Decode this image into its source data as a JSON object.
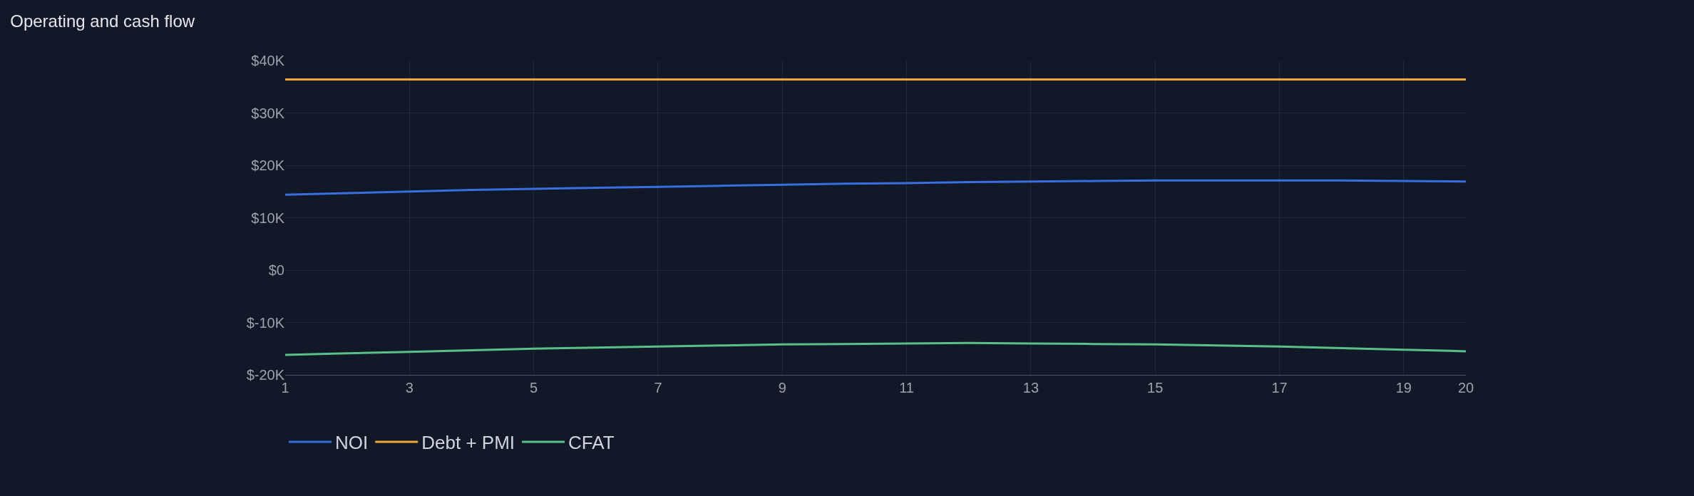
{
  "chart_data": {
    "type": "line",
    "title": "Operating and cash flow",
    "x": [
      1,
      2,
      3,
      4,
      5,
      6,
      7,
      8,
      9,
      10,
      11,
      12,
      13,
      14,
      15,
      16,
      17,
      18,
      19,
      20
    ],
    "series": [
      {
        "name": "NOI",
        "color": "#3b6fe0",
        "values": [
          14400,
          14700,
          15000,
          15300,
          15500,
          15700,
          15900,
          16100,
          16300,
          16500,
          16600,
          16800,
          16900,
          17000,
          17100,
          17100,
          17100,
          17100,
          17000,
          16900
        ]
      },
      {
        "name": "Debt + PMI",
        "color": "#f0a83c",
        "values": [
          36400,
          36400,
          36400,
          36400,
          36400,
          36400,
          36400,
          36400,
          36400,
          36400,
          36400,
          36400,
          36400,
          36400,
          36400,
          36400,
          36400,
          36400,
          36400,
          36400
        ]
      },
      {
        "name": "CFAT",
        "color": "#5bbf8a",
        "values": [
          -16200,
          -15900,
          -15600,
          -15300,
          -15000,
          -14800,
          -14600,
          -14400,
          -14200,
          -14100,
          -14000,
          -13900,
          -14000,
          -14100,
          -14200,
          -14400,
          -14600,
          -14900,
          -15200,
          -15500
        ]
      }
    ],
    "xlim": [
      1,
      20
    ],
    "xticks": [
      1,
      3,
      5,
      7,
      9,
      11,
      13,
      15,
      17,
      19,
      20
    ],
    "ylim": [
      -20000,
      40000
    ],
    "yticks": [
      {
        "value": -20000,
        "label": "$-20K"
      },
      {
        "value": -10000,
        "label": "$-10K"
      },
      {
        "value": 0,
        "label": "$0"
      },
      {
        "value": 10000,
        "label": "$10K"
      },
      {
        "value": 20000,
        "label": "$20K"
      },
      {
        "value": 30000,
        "label": "$30K"
      },
      {
        "value": 40000,
        "label": "$40K"
      }
    ],
    "grid": true,
    "legend": "bottom left",
    "marker": "none",
    "line_style": "solid"
  }
}
